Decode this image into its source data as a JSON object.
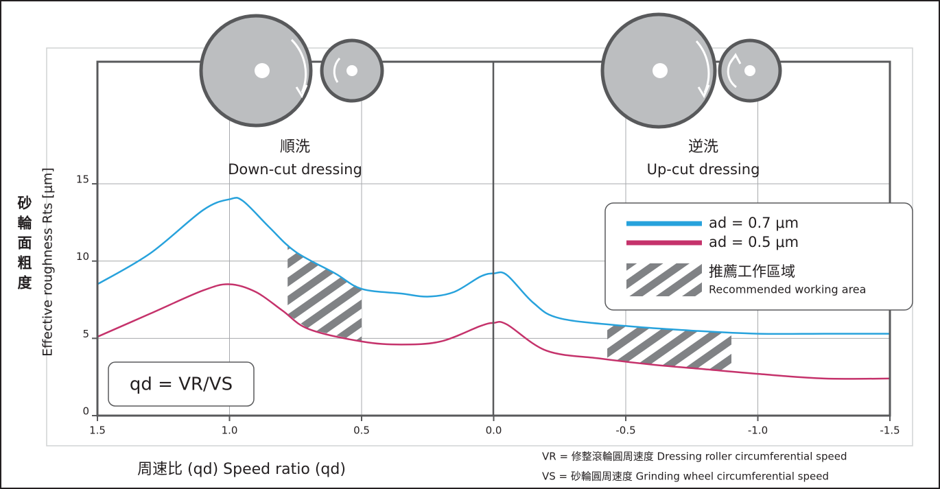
{
  "chart_data": {
    "type": "line",
    "y_label": "Effective roughness Rts [μm]",
    "y_label_zh": "砂輪面粗度",
    "x_label": "周速比 (qd) Speed ratio (qd)",
    "formula": "qd = VR/VS",
    "annotations": [
      {
        "title": "順洗",
        "subtitle": "Down-cut dressing"
      },
      {
        "title": "逆洗",
        "subtitle": "Up-cut dressing"
      }
    ],
    "notes": [
      "VR = 修整滾輪圓周速度 Dressing roller circumferential speed",
      "VS = 砂輪圓周速度 Grinding wheel circumferential speed"
    ],
    "xlim": [
      1.5,
      -1.5
    ],
    "xticks": [
      1.5,
      {
        "value": 1,
        "label": "1.0"
      },
      0.5,
      {
        "value": 0,
        "label": "0.0"
      },
      -0.5,
      {
        "value": -1,
        "label": "-1.0"
      },
      -1.5
    ],
    "ylim": [
      0,
      15
    ],
    "yticks": [
      0,
      5,
      10,
      15
    ],
    "grid": true,
    "series": [
      {
        "name": "ad = 0.7 μm",
        "color": "#27a2dc",
        "x": [
          1.5,
          1.3,
          1.1,
          1.0,
          0.95,
          0.85,
          0.75,
          0.6,
          0.5,
          0.35,
          0.25,
          0.15,
          0.05,
          0.0,
          -0.05,
          -0.15,
          -0.25,
          -0.5,
          -0.75,
          -1.0,
          -1.25,
          -1.5
        ],
        "values": [
          8.5,
          10.5,
          13.3,
          14.0,
          13.9,
          12.2,
          10.6,
          9.2,
          8.2,
          7.9,
          7.7,
          8.0,
          9.0,
          9.2,
          9.1,
          7.3,
          6.3,
          5.8,
          5.5,
          5.3,
          5.3,
          5.3
        ]
      },
      {
        "name": "ad = 0.5 μm",
        "color": "#c5326b",
        "x": [
          1.5,
          1.3,
          1.1,
          1.0,
          0.9,
          0.8,
          0.7,
          0.5,
          0.35,
          0.2,
          0.05,
          0.0,
          -0.05,
          -0.2,
          -0.4,
          -0.6,
          -0.8,
          -1.0,
          -1.25,
          -1.5
        ],
        "values": [
          5.1,
          6.6,
          8.1,
          8.5,
          8.0,
          6.8,
          5.6,
          4.8,
          4.6,
          4.8,
          5.8,
          6.0,
          5.9,
          4.2,
          3.7,
          3.3,
          3.0,
          2.7,
          2.4,
          2.4
        ]
      }
    ],
    "recommended_areas": [
      {
        "x": [
          0.78,
          0.5
        ]
      },
      {
        "x": [
          -0.43,
          -0.9
        ]
      }
    ],
    "recommended_label": "推薦工作區域",
    "recommended_label_en": "Recommended working area"
  }
}
